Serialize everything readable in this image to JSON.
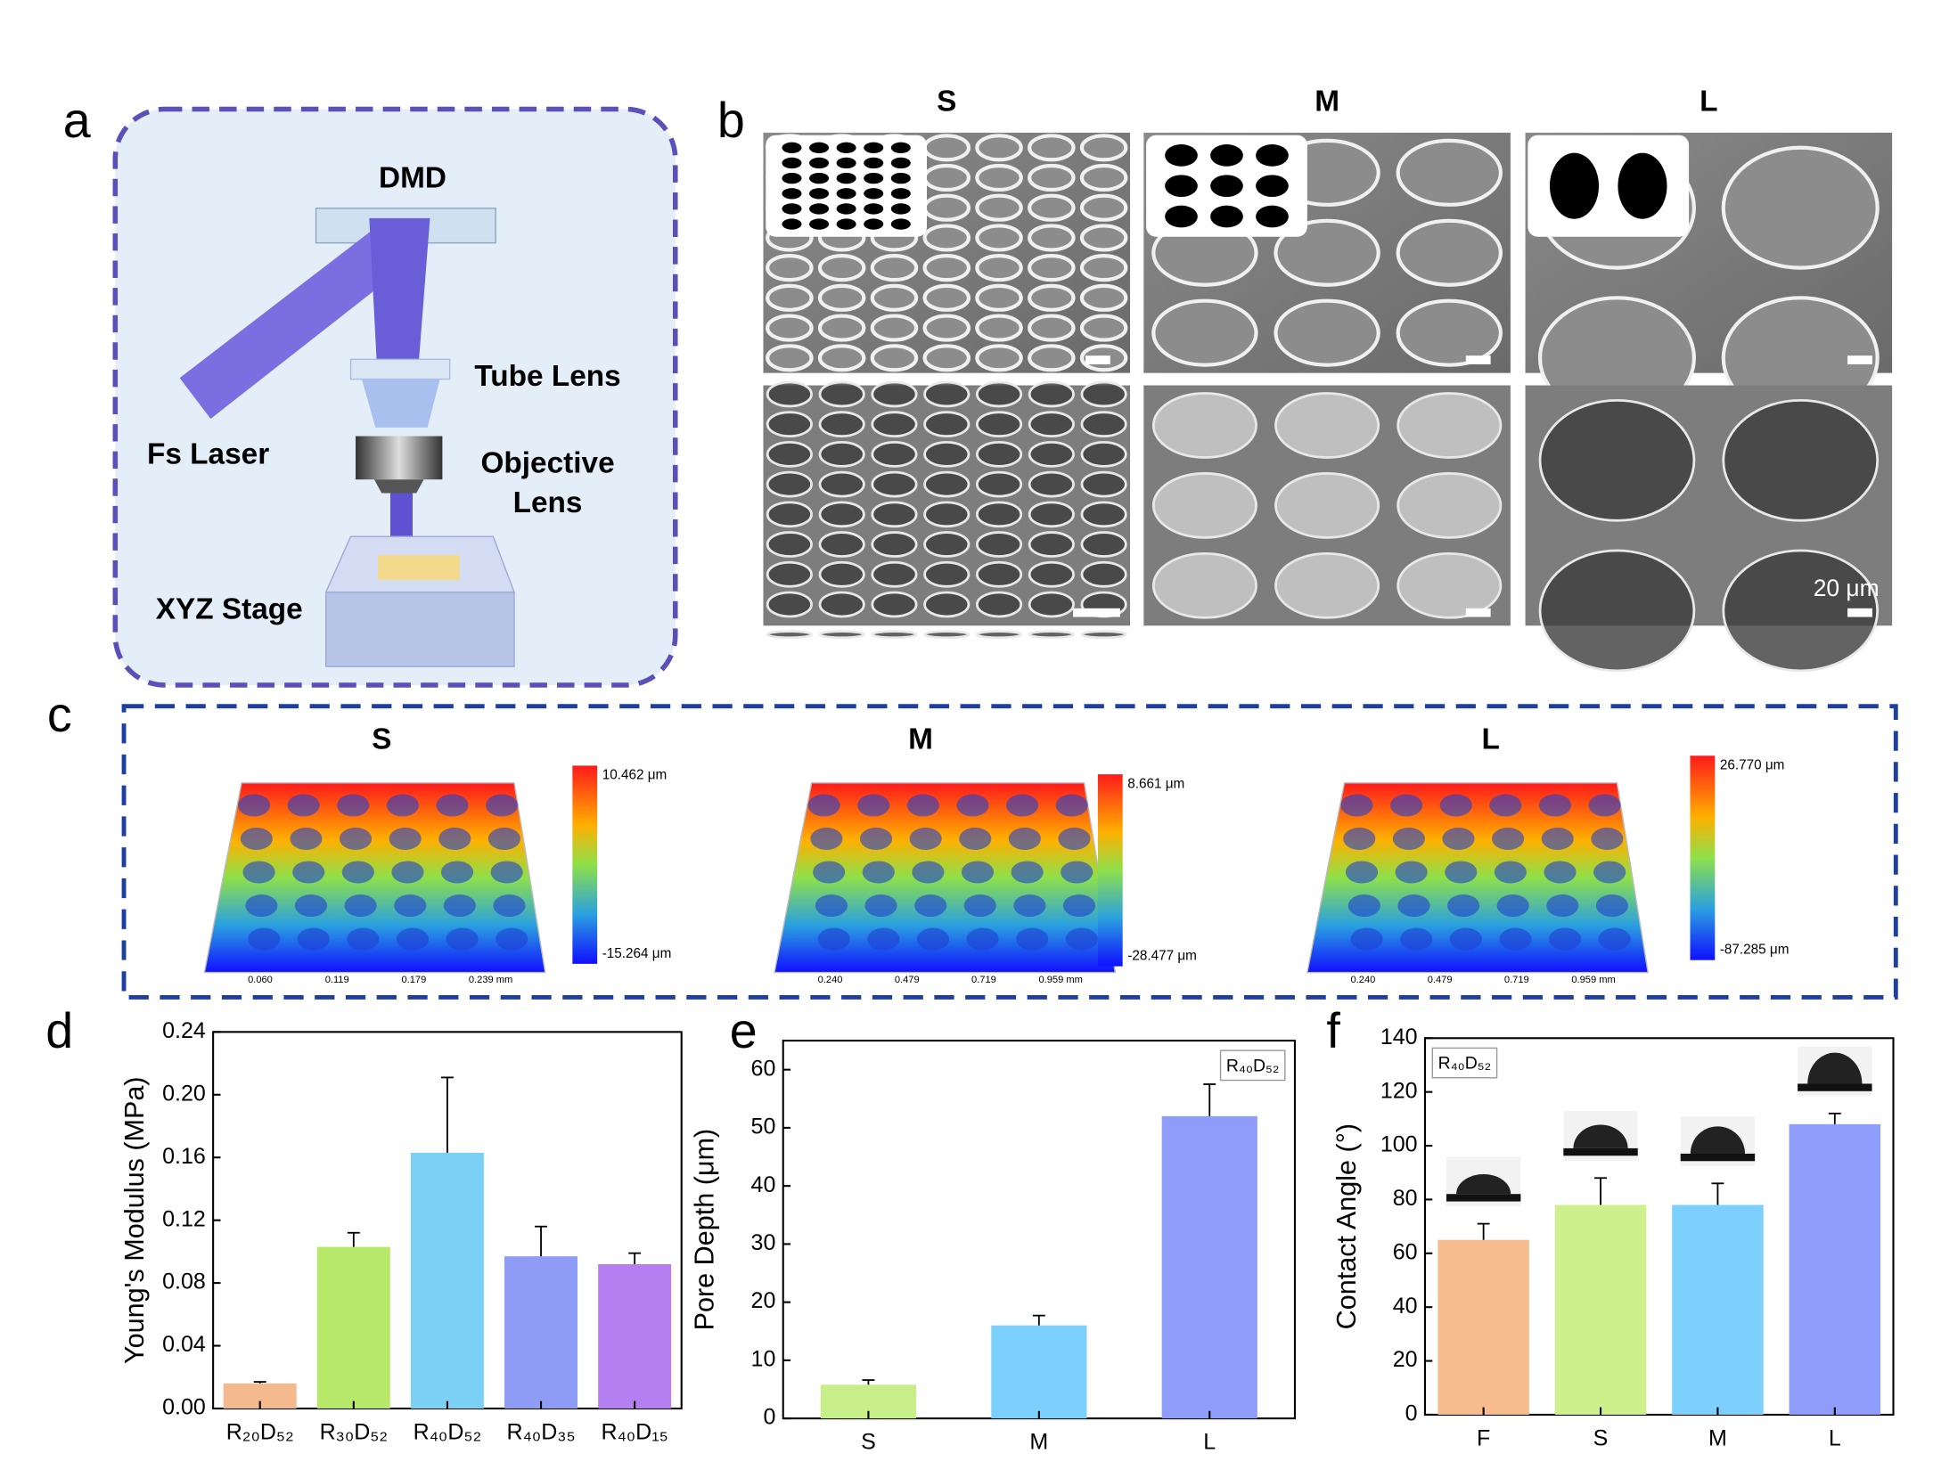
{
  "panel_labels": [
    "a",
    "b",
    "c",
    "d",
    "e",
    "f"
  ],
  "schematic": {
    "dmd": "DMD",
    "tube_lens": "Tube Lens",
    "fs_laser": "Fs Laser",
    "objective_lens": [
      "Objective",
      "Lens"
    ],
    "xyz_stage": "XYZ Stage"
  },
  "sem": {
    "columns": [
      "S",
      "M",
      "L"
    ],
    "scale_bar": "20 μm"
  },
  "profile": {
    "panels": [
      {
        "title": "S",
        "max": "10.462 μm",
        "min": "-15.264 μm",
        "ticks": [
          "0.060",
          "0.119",
          "0.179",
          "0.239 mm"
        ]
      },
      {
        "title": "M",
        "max": "8.661 μm",
        "min": "-28.477 μm",
        "ticks": [
          "0.240",
          "0.479",
          "0.719",
          "0.959 mm"
        ]
      },
      {
        "title": "L",
        "max": "26.770 μm",
        "min": "-87.285 μm",
        "ticks": [
          "0.240",
          "0.479",
          "0.719",
          "0.959 mm"
        ]
      }
    ]
  },
  "chart_data": [
    {
      "type": "bar",
      "ylabel": "Young's Modulus (MPa)",
      "categories": [
        "R₂₀D₅₂",
        "R₃₀D₅₂",
        "R₄₀D₅₂",
        "R₄₀D₃₅",
        "R₄₀D₁₅"
      ],
      "values": [
        0.016,
        0.103,
        0.163,
        0.097,
        0.092
      ],
      "errors": [
        0.001,
        0.009,
        0.048,
        0.019,
        0.007
      ],
      "colors": [
        "#f5b98e",
        "#b8e86a",
        "#7dd0f5",
        "#8f9cf5",
        "#b47ff0"
      ],
      "ylim": [
        0,
        0.24
      ],
      "yticks": [
        {
          "value": 0,
          "label": "0.00"
        },
        0.04,
        0.08,
        0.12,
        0.16,
        {
          "value": 0.2,
          "label": "0.20"
        },
        0.24
      ]
    },
    {
      "type": "bar",
      "ylabel": "Pore Depth (μm)",
      "annotation": "R₄₀D₅₂",
      "categories": [
        "S",
        "M",
        "L"
      ],
      "values": [
        5.8,
        16,
        52
      ],
      "errors": [
        0.8,
        1.7,
        5.5
      ],
      "colors": [
        "#c8ee8a",
        "#7dd0fb",
        "#8f9cfa"
      ],
      "ylim": [
        0,
        65
      ],
      "yticks": [
        0,
        10,
        20,
        30,
        40,
        50,
        60
      ]
    },
    {
      "type": "bar",
      "ylabel": "Contact Angle (°)",
      "annotation": "R₄₀D₅₂",
      "categories": [
        "F",
        "S",
        "M",
        "L"
      ],
      "values": [
        65,
        78,
        78,
        108
      ],
      "errors": [
        6,
        10,
        8,
        4
      ],
      "colors": [
        "#f7bc8e",
        "#cdf08c",
        "#7dd0fb",
        "#8f9cfa"
      ],
      "ylim": [
        0,
        140
      ],
      "yticks": [
        0,
        20,
        40,
        60,
        80,
        100,
        120,
        140
      ]
    }
  ]
}
